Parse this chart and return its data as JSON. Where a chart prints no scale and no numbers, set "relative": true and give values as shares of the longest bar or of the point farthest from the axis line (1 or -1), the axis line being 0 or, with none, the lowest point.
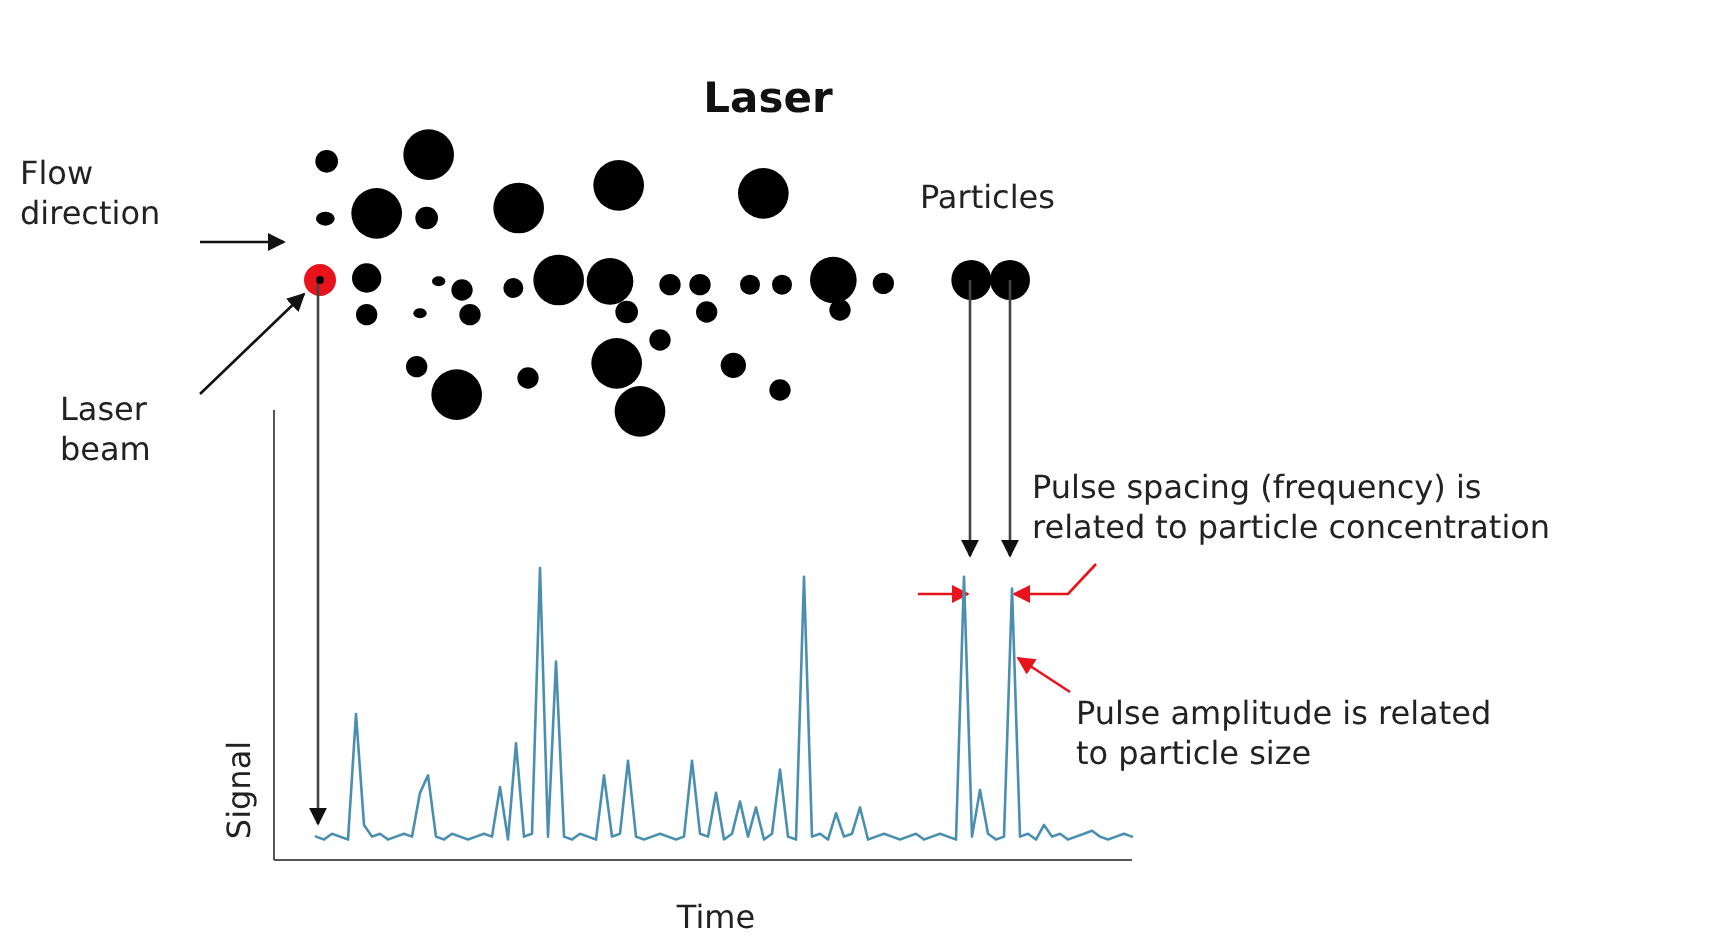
{
  "chart_data": {
    "type": "line",
    "title": "Laser",
    "xlabel": "Time",
    "ylabel": "Signal",
    "relative": true,
    "annotations": [
      "Flow\ndirection",
      "Laser\nbeam",
      "Particles",
      "Pulse spacing (frequency) is\nrelated to particle concentration",
      "Pulse amplitude is related\nto particle size"
    ],
    "categories": [
      null,
      null,
      null,
      null,
      null,
      null,
      null,
      null,
      null,
      null,
      null,
      null,
      null,
      null,
      null,
      null,
      null,
      null,
      null,
      null,
      null,
      null,
      null,
      null,
      null,
      null,
      null,
      null,
      null,
      null,
      null,
      null,
      null,
      null,
      null,
      null,
      null,
      null,
      null,
      null,
      null,
      null,
      null,
      null,
      null,
      null,
      null,
      null,
      null,
      null,
      null,
      null,
      null,
      null,
      null,
      null,
      null,
      null,
      null,
      null,
      null,
      null,
      null,
      null,
      null,
      null,
      null,
      null,
      null,
      null,
      null,
      null,
      null,
      null,
      null,
      null,
      null,
      null,
      null,
      null,
      null,
      null,
      null,
      null,
      null,
      null,
      null,
      null,
      null,
      null,
      null,
      null,
      null,
      null,
      null,
      null,
      null,
      null,
      null,
      null,
      null,
      null,
      null
    ],
    "series": [
      {
        "color": "#4a8fb0",
        "values": [
          0.08,
          0.07,
          0.09,
          0.08,
          0.07,
          0.5,
          0.12,
          0.08,
          0.09,
          0.07,
          0.08,
          0.09,
          0.08,
          0.23,
          0.29,
          0.08,
          0.07,
          0.09,
          0.08,
          0.07,
          0.08,
          0.09,
          0.08,
          0.25,
          0.07,
          0.4,
          0.08,
          0.09,
          1,
          0.08,
          0.68,
          0.08,
          0.07,
          0.09,
          0.08,
          0.07,
          0.29,
          0.08,
          0.09,
          0.34,
          0.08,
          0.07,
          0.08,
          0.09,
          0.08,
          0.07,
          0.08,
          0.34,
          0.09,
          0.08,
          0.23,
          0.07,
          0.09,
          0.2,
          0.08,
          0.18,
          0.07,
          0.09,
          0.31,
          0.08,
          0.07,
          0.97,
          0.08,
          0.09,
          0.07,
          0.16,
          0.08,
          0.09,
          0.18,
          0.07,
          0.08,
          0.09,
          0.08,
          0.07,
          0.08,
          0.09,
          0.07,
          0.08,
          0.09,
          0.08,
          0.07,
          0.97,
          0.08,
          0.24,
          0.09,
          0.07,
          0.08,
          0.93,
          0.08,
          0.09,
          0.07,
          0.12,
          0.08,
          0.09,
          0.07,
          0.08,
          0.09,
          0.1,
          0.08,
          0.07,
          0.08,
          0.09,
          0.08
        ]
      }
    ]
  }
}
